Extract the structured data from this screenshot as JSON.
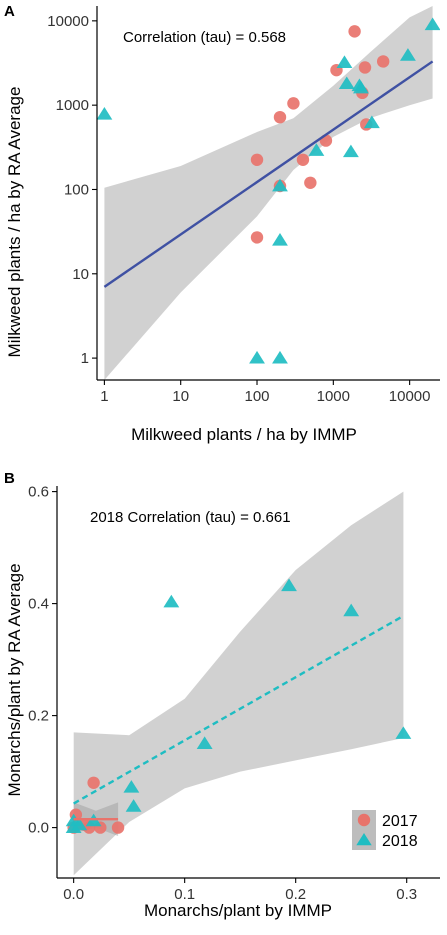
{
  "chart_data": [
    {
      "panel": "A",
      "type": "scatter",
      "title": "",
      "annotation": "Correlation (tau) = 0.568",
      "xlabel": "Milkweed plants / ha by IMMP",
      "ylabel": "Milkweed plants / ha by RA Average",
      "xscale": "log",
      "yscale": "log",
      "xlim": [
        0.8,
        25000
      ],
      "ylim": [
        0.55,
        15000
      ],
      "xticks": [
        1,
        10,
        100,
        1000,
        10000
      ],
      "xtick_labels": [
        "1",
        "10",
        "100",
        "1000",
        "10000"
      ],
      "yticks": [
        1,
        10,
        100,
        1000,
        10000
      ],
      "ytick_labels": [
        "1",
        "10",
        "100",
        "1000",
        "10000"
      ],
      "grid": false,
      "series": [
        {
          "year": "2017",
          "marker": "circle",
          "color": "#E8736B",
          "points": [
            {
              "x": 100,
              "y": 27
            },
            {
              "x": 100,
              "y": 225
            },
            {
              "x": 200,
              "y": 110
            },
            {
              "x": 200,
              "y": 720
            },
            {
              "x": 300,
              "y": 1050
            },
            {
              "x": 400,
              "y": 225
            },
            {
              "x": 500,
              "y": 120
            },
            {
              "x": 800,
              "y": 380
            },
            {
              "x": 1100,
              "y": 2600
            },
            {
              "x": 1900,
              "y": 7500
            },
            {
              "x": 2400,
              "y": 1400
            },
            {
              "x": 2600,
              "y": 2800
            },
            {
              "x": 2700,
              "y": 590
            },
            {
              "x": 4500,
              "y": 3300
            }
          ]
        },
        {
          "year": "2018",
          "marker": "triangle",
          "color": "#1FBDC2",
          "points": [
            {
              "x": 1,
              "y": 780
            },
            {
              "x": 100,
              "y": 1
            },
            {
              "x": 200,
              "y": 1
            },
            {
              "x": 200,
              "y": 25
            },
            {
              "x": 200,
              "y": 110
            },
            {
              "x": 600,
              "y": 290
            },
            {
              "x": 1400,
              "y": 3200
            },
            {
              "x": 1500,
              "y": 1800
            },
            {
              "x": 1700,
              "y": 280
            },
            {
              "x": 2200,
              "y": 1700
            },
            {
              "x": 2300,
              "y": 1600
            },
            {
              "x": 3200,
              "y": 620
            },
            {
              "x": 9500,
              "y": 3900
            },
            {
              "x": 20000,
              "y": 9000
            }
          ]
        }
      ],
      "fit": {
        "line": [
          {
            "x": 1,
            "y": 7
          },
          {
            "x": 20000,
            "y": 3300
          }
        ],
        "color": "#3F51A3",
        "style": "solid",
        "ci_band": [
          {
            "x": 1,
            "lo": 0.55,
            "hi": 105
          },
          {
            "x": 10,
            "lo": 6,
            "hi": 190
          },
          {
            "x": 100,
            "lo": 48,
            "hi": 480
          },
          {
            "x": 300,
            "lo": 170,
            "hi": 700
          },
          {
            "x": 1000,
            "lo": 420,
            "hi": 1700
          },
          {
            "x": 3000,
            "lo": 700,
            "hi": 4200
          },
          {
            "x": 10000,
            "lo": 1000,
            "hi": 11000
          },
          {
            "x": 20000,
            "lo": 1200,
            "hi": 15000
          }
        ]
      }
    },
    {
      "panel": "B",
      "type": "scatter",
      "title": "",
      "annotation": "2018 Correlation (tau) = 0.661",
      "xlabel": "Monarchs/plant by IMMP",
      "ylabel": "Monarchs/plant by RA Average",
      "xlim": [
        -0.015,
        0.33
      ],
      "ylim": [
        -0.09,
        0.61
      ],
      "xticks": [
        0.0,
        0.1,
        0.2,
        0.3
      ],
      "xtick_labels": [
        "0.0",
        "0.1",
        "0.2",
        "0.3"
      ],
      "yticks": [
        0.0,
        0.2,
        0.4,
        0.6
      ],
      "ytick_labels": [
        "0.0",
        "0.2",
        "0.4",
        "0.6"
      ],
      "grid": false,
      "legend": {
        "position": "bottom-right",
        "entries": [
          {
            "label": "2017",
            "marker": "circle",
            "color": "#E8736B"
          },
          {
            "label": "2018",
            "marker": "triangle",
            "color": "#1FBDC2"
          }
        ]
      },
      "series": [
        {
          "year": "2017",
          "marker": "circle",
          "color": "#E8736B",
          "points": [
            {
              "x": 0.0,
              "y": 0.0
            },
            {
              "x": 0.002,
              "y": 0.023
            },
            {
              "x": 0.01,
              "y": 0.005
            },
            {
              "x": 0.014,
              "y": 0.0
            },
            {
              "x": 0.018,
              "y": 0.08
            },
            {
              "x": 0.024,
              "y": 0.0
            },
            {
              "x": 0.04,
              "y": 0.0
            }
          ]
        },
        {
          "year": "2018",
          "marker": "triangle",
          "color": "#1FBDC2",
          "points": [
            {
              "x": 0.0,
              "y": 0.0
            },
            {
              "x": 0.0,
              "y": 0.012
            },
            {
              "x": 0.005,
              "y": 0.005
            },
            {
              "x": 0.018,
              "y": 0.012
            },
            {
              "x": 0.052,
              "y": 0.072
            },
            {
              "x": 0.054,
              "y": 0.038
            },
            {
              "x": 0.088,
              "y": 0.403
            },
            {
              "x": 0.118,
              "y": 0.15
            },
            {
              "x": 0.194,
              "y": 0.432
            },
            {
              "x": 0.25,
              "y": 0.387
            },
            {
              "x": 0.297,
              "y": 0.168
            }
          ]
        }
      ],
      "fit_2017": {
        "line": [
          {
            "x": 0.0,
            "y": 0.015
          },
          {
            "x": 0.04,
            "y": 0.015
          }
        ],
        "color": "#E8736B",
        "style": "solid",
        "ci_band": [
          {
            "x": 0.0,
            "lo": -0.01,
            "hi": 0.045
          },
          {
            "x": 0.02,
            "lo": 0.0,
            "hi": 0.03
          },
          {
            "x": 0.04,
            "lo": -0.015,
            "hi": 0.045
          }
        ]
      },
      "fit_2018": {
        "line": [
          {
            "x": 0.0,
            "y": 0.043
          },
          {
            "x": 0.297,
            "y": 0.378
          }
        ],
        "color": "#1FBDC2",
        "style": "dashed",
        "ci_band": [
          {
            "x": 0.0,
            "lo": -0.085,
            "hi": 0.17
          },
          {
            "x": 0.05,
            "lo": 0.01,
            "hi": 0.165
          },
          {
            "x": 0.1,
            "lo": 0.07,
            "hi": 0.23
          },
          {
            "x": 0.15,
            "lo": 0.1,
            "hi": 0.35
          },
          {
            "x": 0.2,
            "lo": 0.12,
            "hi": 0.46
          },
          {
            "x": 0.25,
            "lo": 0.14,
            "hi": 0.54
          },
          {
            "x": 0.297,
            "lo": 0.16,
            "hi": 0.6
          }
        ]
      }
    }
  ]
}
